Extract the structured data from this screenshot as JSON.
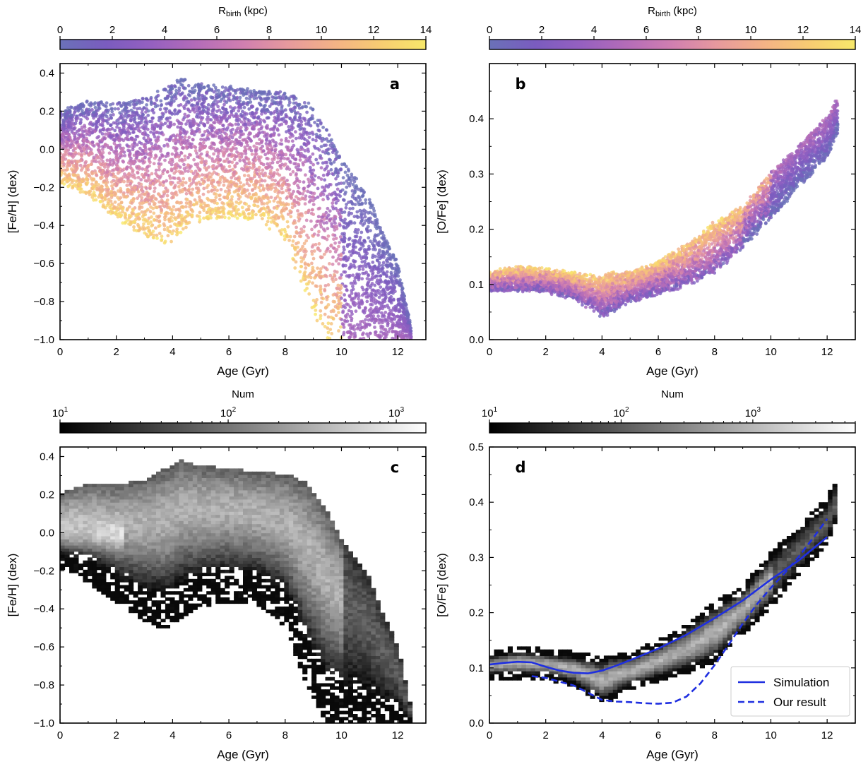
{
  "colors": {
    "plasma": [
      "#6a71b8",
      "#7a5cbf",
      "#9560c0",
      "#b46cb8",
      "#d07fb0",
      "#e79a9d",
      "#f3b286",
      "#f7cc72",
      "#f7e86a"
    ],
    "gray": [
      "#000000",
      "#ffffff"
    ],
    "sim_line": "#1f2fe0"
  },
  "chart_data": [
    {
      "id": "a",
      "type": "scatter",
      "panel_label": "a",
      "xlabel": "Age (Gyr)",
      "ylabel": "[Fe/H] (dex)",
      "xlim": [
        0,
        13
      ],
      "ylim": [
        -1.0,
        0.45
      ],
      "xticks": [
        0,
        2,
        4,
        6,
        8,
        10,
        12
      ],
      "xtick_labels": [
        "0",
        "2",
        "4",
        "6",
        "8",
        "10",
        "12"
      ],
      "yticks": [
        -1.0,
        -0.8,
        -0.6,
        -0.4,
        -0.2,
        0.0,
        0.2,
        0.4
      ],
      "ytick_labels": [
        "−1.0",
        "−0.8",
        "−0.6",
        "−0.4",
        "−0.2",
        "0.0",
        "0.2",
        "0.4"
      ],
      "colorbar": {
        "label_base": "R",
        "label_sub": "birth",
        "label_unit": " (kpc)",
        "ticks": [
          0,
          2,
          4,
          6,
          8,
          10,
          12,
          14
        ],
        "tick_labels": [
          "0",
          "2",
          "4",
          "6",
          "8",
          "10",
          "12",
          "14"
        ],
        "range": [
          0,
          14
        ],
        "cmap": "plasma"
      },
      "envelope": {
        "age": [
          0,
          1,
          2,
          3,
          3.8,
          4.3,
          5,
          6,
          7,
          8,
          8.8,
          9.5,
          10,
          10.5,
          11,
          11.5,
          12,
          12.5
        ],
        "upper": [
          0.2,
          0.25,
          0.24,
          0.27,
          0.33,
          0.37,
          0.34,
          0.33,
          0.31,
          0.3,
          0.25,
          0.1,
          -0.05,
          -0.15,
          -0.25,
          -0.45,
          -0.6,
          -0.95
        ],
        "lower": [
          -0.18,
          -0.25,
          -0.36,
          -0.46,
          -0.5,
          -0.44,
          -0.38,
          -0.36,
          -0.37,
          -0.48,
          -0.8,
          -1.0,
          -1.0,
          -1.0,
          -1.0,
          -1.0,
          -1.0,
          -1.0
        ]
      }
    },
    {
      "id": "b",
      "type": "scatter",
      "panel_label": "b",
      "xlabel": "Age (Gyr)",
      "ylabel": "[O/Fe] (dex)",
      "xlim": [
        0,
        13
      ],
      "ylim": [
        0.0,
        0.5
      ],
      "xticks": [
        0,
        2,
        4,
        6,
        8,
        10,
        12
      ],
      "xtick_labels": [
        "0",
        "2",
        "4",
        "6",
        "8",
        "10",
        "12"
      ],
      "yticks": [
        0.0,
        0.1,
        0.2,
        0.3,
        0.4
      ],
      "ytick_labels": [
        "0.0",
        "0.1",
        "0.2",
        "0.3",
        "0.4"
      ],
      "colorbar": {
        "label_base": "R",
        "label_sub": "birth",
        "label_unit": " (kpc)",
        "ticks": [
          0,
          2,
          4,
          6,
          8,
          10,
          12,
          14
        ],
        "tick_labels": [
          "0",
          "2",
          "4",
          "6",
          "8",
          "10",
          "12",
          "14"
        ],
        "range": [
          0,
          14
        ],
        "cmap": "plasma"
      },
      "envelope": {
        "age": [
          0,
          1,
          2,
          3,
          4,
          4.3,
          5,
          6,
          7,
          8,
          9,
          10,
          11,
          12,
          12.4
        ],
        "upper": [
          0.12,
          0.13,
          0.125,
          0.12,
          0.11,
          0.12,
          0.12,
          0.14,
          0.17,
          0.21,
          0.24,
          0.3,
          0.35,
          0.4,
          0.44
        ],
        "lower": [
          0.09,
          0.09,
          0.09,
          0.075,
          0.045,
          0.05,
          0.07,
          0.085,
          0.1,
          0.12,
          0.17,
          0.22,
          0.28,
          0.33,
          0.38
        ]
      }
    },
    {
      "id": "c",
      "type": "heatmap",
      "panel_label": "c",
      "xlabel": "Age (Gyr)",
      "ylabel": "[Fe/H] (dex)",
      "xlim": [
        0,
        13
      ],
      "ylim": [
        -1.0,
        0.45
      ],
      "xticks": [
        0,
        2,
        4,
        6,
        8,
        10,
        12
      ],
      "xtick_labels": [
        "0",
        "2",
        "4",
        "6",
        "8",
        "10",
        "12"
      ],
      "yticks": [
        -1.0,
        -0.8,
        -0.6,
        -0.4,
        -0.2,
        0.0,
        0.2,
        0.4
      ],
      "ytick_labels": [
        "−1.0",
        "−0.8",
        "−0.6",
        "−0.4",
        "−0.2",
        "0.0",
        "0.2",
        "0.4"
      ],
      "colorbar": {
        "label": "Num",
        "scale": "log",
        "range": [
          10,
          1500
        ],
        "ticks": [
          10,
          100,
          1000
        ],
        "tick_labels": [
          "10",
          "10",
          "10"
        ],
        "tick_exponents": [
          "1",
          "2",
          "3"
        ],
        "cmap": "gray"
      },
      "envelope": {
        "age": [
          0,
          1,
          2,
          3,
          3.8,
          4.3,
          5,
          6,
          7,
          8,
          8.8,
          9.5,
          10,
          10.5,
          11,
          11.5,
          12,
          12.5
        ],
        "upper": [
          0.2,
          0.25,
          0.24,
          0.27,
          0.33,
          0.37,
          0.34,
          0.33,
          0.31,
          0.3,
          0.25,
          0.1,
          -0.05,
          -0.15,
          -0.25,
          -0.45,
          -0.6,
          -0.95
        ],
        "lower": [
          -0.18,
          -0.25,
          -0.36,
          -0.46,
          -0.5,
          -0.44,
          -0.38,
          -0.36,
          -0.37,
          -0.48,
          -0.8,
          -1.0,
          -1.0,
          -1.0,
          -1.0,
          -1.0,
          -1.0,
          -1.0
        ]
      }
    },
    {
      "id": "d",
      "type": "heatmap",
      "panel_label": "d",
      "xlabel": "Age (Gyr)",
      "ylabel": "[O/Fe] (dex)",
      "xlim": [
        0,
        13
      ],
      "ylim": [
        0.0,
        0.5
      ],
      "xticks": [
        0,
        2,
        4,
        6,
        8,
        10,
        12
      ],
      "xtick_labels": [
        "0",
        "2",
        "4",
        "6",
        "8",
        "10",
        "12"
      ],
      "yticks": [
        0.0,
        0.1,
        0.2,
        0.3,
        0.4,
        0.5
      ],
      "ytick_labels": [
        "0.0",
        "0.1",
        "0.2",
        "0.3",
        "0.4",
        "0.5"
      ],
      "colorbar": {
        "label": "Num",
        "scale": "log",
        "range": [
          10,
          6000
        ],
        "ticks": [
          10,
          100,
          1000
        ],
        "tick_labels": [
          "10",
          "10",
          "10"
        ],
        "tick_exponents": [
          "1",
          "2",
          "3"
        ],
        "cmap": "gray"
      },
      "envelope": {
        "age": [
          0,
          1,
          2,
          3,
          4,
          4.3,
          5,
          6,
          7,
          8,
          9,
          10,
          11,
          12,
          12.4
        ],
        "upper": [
          0.12,
          0.13,
          0.125,
          0.12,
          0.11,
          0.12,
          0.12,
          0.14,
          0.17,
          0.21,
          0.24,
          0.3,
          0.35,
          0.4,
          0.44
        ],
        "lower": [
          0.09,
          0.09,
          0.09,
          0.075,
          0.045,
          0.05,
          0.07,
          0.085,
          0.1,
          0.12,
          0.17,
          0.22,
          0.28,
          0.33,
          0.38
        ]
      },
      "series": [
        {
          "name": "Simulation",
          "style": "solid",
          "x": [
            0,
            0.5,
            1,
            1.5,
            2,
            2.5,
            3,
            3.5,
            4,
            4.5,
            5,
            6,
            7,
            8,
            9,
            10,
            11,
            12
          ],
          "y": [
            0.106,
            0.109,
            0.111,
            0.11,
            0.102,
            0.095,
            0.091,
            0.09,
            0.095,
            0.104,
            0.114,
            0.135,
            0.16,
            0.19,
            0.222,
            0.26,
            0.295,
            0.337
          ]
        },
        {
          "name": "Our result",
          "style": "dashed",
          "x": [
            1.5,
            2,
            2.5,
            3,
            3.5,
            4,
            4.5,
            5,
            5.5,
            6,
            6.5,
            7,
            7.5,
            8,
            8.5,
            9,
            9.5,
            10,
            10.5,
            11,
            11.5,
            12
          ],
          "y": [
            0.085,
            0.082,
            0.075,
            0.068,
            0.055,
            0.042,
            0.039,
            0.038,
            0.036,
            0.035,
            0.037,
            0.048,
            0.072,
            0.105,
            0.142,
            0.18,
            0.215,
            0.245,
            0.272,
            0.302,
            0.335,
            0.37
          ]
        }
      ],
      "legend": {
        "position": "lower-right",
        "entries": [
          "Simulation",
          "Our result"
        ]
      }
    }
  ]
}
